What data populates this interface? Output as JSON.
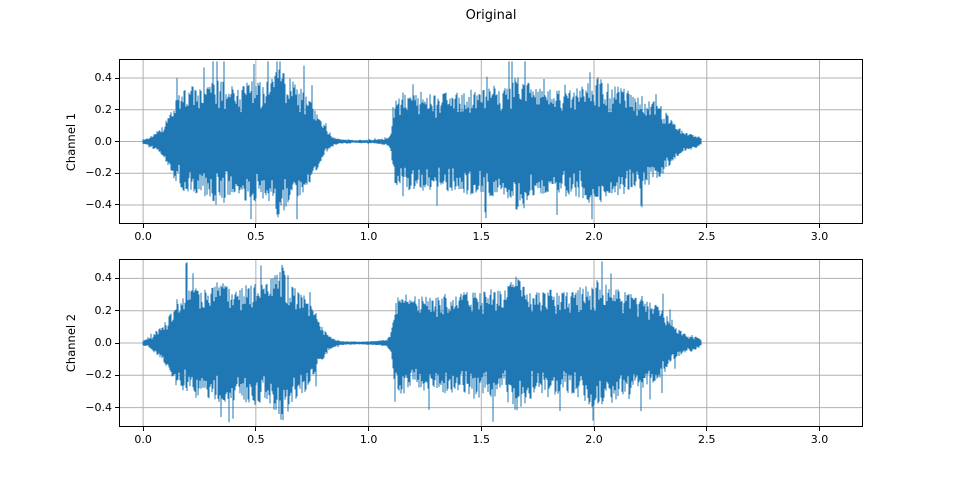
{
  "figure": {
    "title": "Original",
    "background": "#ffffff",
    "text_color": "#000000"
  },
  "chart_data": [
    {
      "type": "line",
      "kind": "audio-waveform",
      "ylabel": "Channel 1",
      "xlabel": "",
      "grid": true,
      "line_color": "#1f77b4",
      "grid_color": "#b0b0b0",
      "spine_color": "#000000",
      "xlim": [
        -0.107,
        3.193
      ],
      "ylim": [
        -0.52,
        0.52
      ],
      "xtick_values": [
        0.0,
        0.5,
        1.0,
        1.5,
        2.0,
        2.5,
        3.0
      ],
      "xtick_labels": [
        "0.0",
        "0.5",
        "1.0",
        "1.5",
        "2.0",
        "2.5",
        "3.0"
      ],
      "ytick_values": [
        -0.4,
        -0.2,
        0.0,
        0.2,
        0.4
      ],
      "ytick_labels": [
        "−0.4",
        "−0.2",
        "0.0",
        "0.2",
        "0.4"
      ],
      "signal_duration_s": 2.48,
      "envelope": {
        "t": [
          0.0,
          0.03,
          0.06,
          0.09,
          0.12,
          0.15,
          0.18,
          0.22,
          0.26,
          0.3,
          0.34,
          0.38,
          0.42,
          0.46,
          0.5,
          0.54,
          0.58,
          0.61,
          0.64,
          0.68,
          0.72,
          0.76,
          0.8,
          0.84,
          0.88,
          0.95,
          1.02,
          1.08,
          1.1,
          1.12,
          1.15,
          1.2,
          1.25,
          1.3,
          1.35,
          1.4,
          1.45,
          1.5,
          1.55,
          1.6,
          1.65,
          1.7,
          1.75,
          1.8,
          1.85,
          1.9,
          1.95,
          2.0,
          2.05,
          2.1,
          2.15,
          2.2,
          2.25,
          2.3,
          2.35,
          2.4,
          2.44,
          2.47,
          2.48
        ],
        "amplitude": [
          0.015,
          0.03,
          0.06,
          0.1,
          0.17,
          0.28,
          0.33,
          0.36,
          0.34,
          0.36,
          0.42,
          0.36,
          0.34,
          0.38,
          0.4,
          0.36,
          0.44,
          0.5,
          0.42,
          0.36,
          0.32,
          0.22,
          0.1,
          0.03,
          0.013,
          0.01,
          0.012,
          0.02,
          0.05,
          0.28,
          0.33,
          0.3,
          0.32,
          0.29,
          0.33,
          0.31,
          0.34,
          0.32,
          0.36,
          0.34,
          0.45,
          0.38,
          0.33,
          0.35,
          0.32,
          0.34,
          0.36,
          0.43,
          0.38,
          0.36,
          0.33,
          0.3,
          0.27,
          0.23,
          0.13,
          0.06,
          0.05,
          0.03,
          0.015
        ]
      }
    },
    {
      "type": "line",
      "kind": "audio-waveform",
      "ylabel": "Channel 2",
      "xlabel": "",
      "grid": true,
      "line_color": "#1f77b4",
      "grid_color": "#b0b0b0",
      "spine_color": "#000000",
      "xlim": [
        -0.107,
        3.193
      ],
      "ylim": [
        -0.52,
        0.52
      ],
      "xtick_values": [
        0.0,
        0.5,
        1.0,
        1.5,
        2.0,
        2.5,
        3.0
      ],
      "xtick_labels": [
        "0.0",
        "0.5",
        "1.0",
        "1.5",
        "2.0",
        "2.5",
        "3.0"
      ],
      "ytick_values": [
        -0.4,
        -0.2,
        0.0,
        0.2,
        0.4
      ],
      "ytick_labels": [
        "−0.4",
        "−0.2",
        "0.0",
        "0.2",
        "0.4"
      ],
      "signal_duration_s": 2.48,
      "envelope": {
        "t": [
          0.0,
          0.03,
          0.06,
          0.09,
          0.12,
          0.15,
          0.18,
          0.22,
          0.26,
          0.3,
          0.34,
          0.38,
          0.42,
          0.46,
          0.5,
          0.54,
          0.58,
          0.62,
          0.65,
          0.68,
          0.72,
          0.76,
          0.8,
          0.84,
          0.88,
          0.95,
          1.02,
          1.08,
          1.1,
          1.12,
          1.15,
          1.2,
          1.25,
          1.3,
          1.35,
          1.4,
          1.45,
          1.5,
          1.55,
          1.6,
          1.65,
          1.7,
          1.75,
          1.8,
          1.85,
          1.9,
          1.95,
          2.0,
          2.05,
          2.1,
          2.15,
          2.2,
          2.25,
          2.3,
          2.35,
          2.4,
          2.44,
          2.47,
          2.48
        ],
        "amplitude": [
          0.015,
          0.03,
          0.07,
          0.11,
          0.18,
          0.27,
          0.32,
          0.35,
          0.33,
          0.35,
          0.4,
          0.35,
          0.33,
          0.37,
          0.39,
          0.35,
          0.42,
          0.5,
          0.41,
          0.35,
          0.31,
          0.21,
          0.1,
          0.03,
          0.012,
          0.01,
          0.012,
          0.02,
          0.05,
          0.27,
          0.32,
          0.29,
          0.31,
          0.28,
          0.32,
          0.3,
          0.33,
          0.31,
          0.35,
          0.33,
          0.44,
          0.37,
          0.32,
          0.34,
          0.31,
          0.33,
          0.35,
          0.41,
          0.37,
          0.35,
          0.32,
          0.29,
          0.26,
          0.22,
          0.12,
          0.06,
          0.05,
          0.03,
          0.015
        ]
      }
    }
  ]
}
